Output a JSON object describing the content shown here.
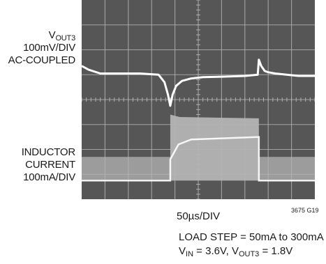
{
  "chart_data": {
    "type": "line",
    "title": "",
    "channels": [
      {
        "name_main": "V",
        "name_sub": "OUT3",
        "scale": "100mV/DIV",
        "coupling": "AC-COUPLED"
      },
      {
        "name_line1": "INDUCTOR",
        "name_line2": "CURRENT",
        "scale": "100mA/DIV"
      }
    ],
    "timebase": "50µs/DIV",
    "figure_code": "3675 G19",
    "conditions": {
      "line1": "LOAD STEP = 50mA to 300mA",
      "vin_main": "V",
      "vin_sub": "IN",
      "vin_value": " = 3.6V, ",
      "vout_main": "V",
      "vout_sub": "OUT3",
      "vout_value": " = 1.8V"
    },
    "grid": {
      "x_divisions": 10,
      "y_divisions": 8,
      "visible": true
    },
    "time_axis_div": [
      0,
      10
    ],
    "load_step": {
      "low_mA": 50,
      "high_mA": 300,
      "step_up_div": 3.8,
      "step_down_div": 7.6
    },
    "voltage_trace": {
      "time_div": [
        0,
        0.3,
        0.8,
        1.5,
        2.5,
        3.3,
        3.55,
        3.7,
        3.8,
        3.9,
        4.05,
        4.3,
        4.7,
        5.2,
        6.0,
        7.0,
        7.55,
        7.6,
        7.7,
        7.85,
        8.0,
        8.3,
        8.8,
        9.3,
        10
      ],
      "voltage_div": [
        5.35,
        5.2,
        5.05,
        5.05,
        5.05,
        5.0,
        4.7,
        4.2,
        3.75,
        4.2,
        4.55,
        4.75,
        4.85,
        4.9,
        4.92,
        4.95,
        5.0,
        5.6,
        5.35,
        5.15,
        5.1,
        5.05,
        5.0,
        4.95,
        4.95
      ]
    },
    "colors": {
      "screen": "#565656",
      "grid": "#b0b0b0",
      "trace": "#ffffff",
      "current_band": "#b4b4b4"
    }
  }
}
